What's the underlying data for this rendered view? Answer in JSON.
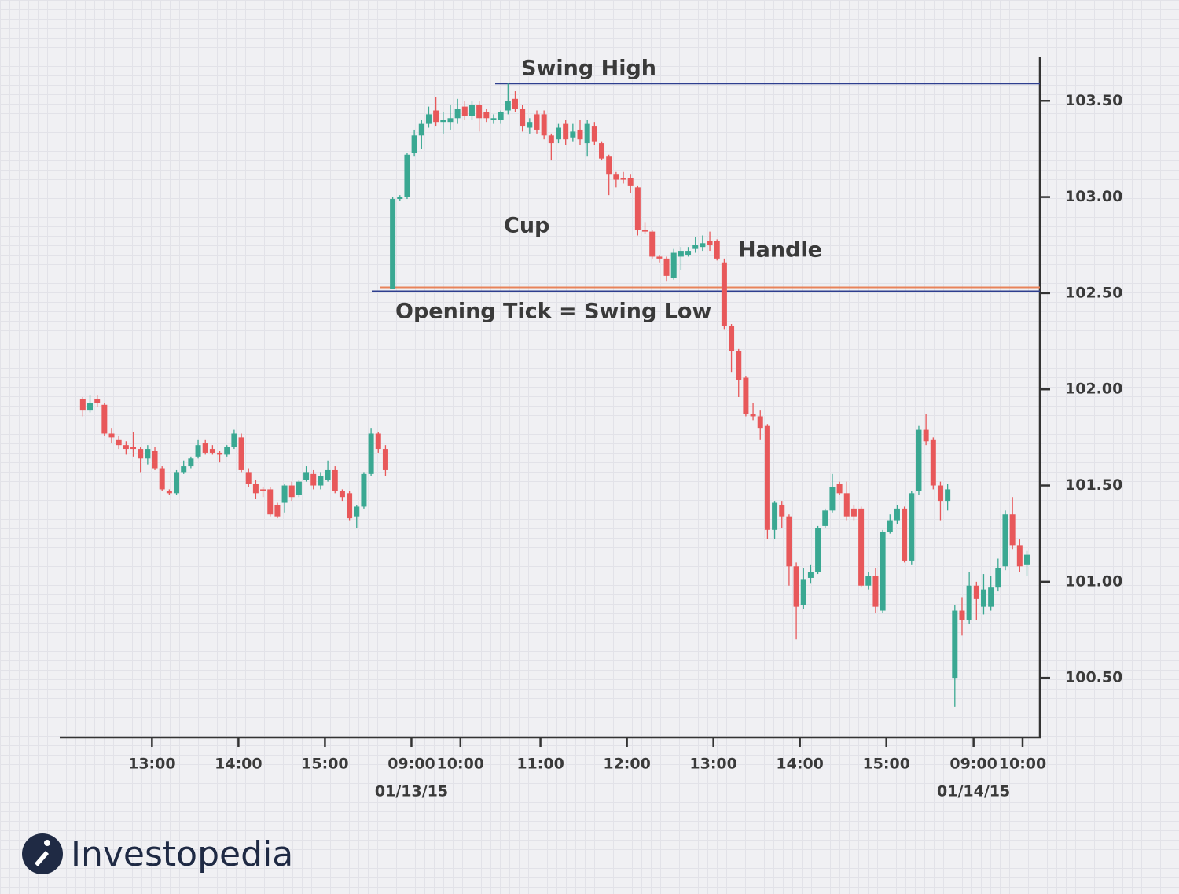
{
  "chart_data": {
    "type": "candlestick",
    "annotations": [
      "Swing High",
      "Cup",
      "Handle",
      "Opening Tick = Swing Low"
    ],
    "brand": "Investopedia",
    "up_color": "#3aa892",
    "down_color": "#e8585a",
    "lines": [
      {
        "value": 103.59,
        "color": "#2e3f8f"
      },
      {
        "value": 102.53,
        "color": "#e8835a"
      },
      {
        "value": 102.51,
        "color": "#2e3f8f"
      }
    ],
    "open": [
      101.95,
      101.89,
      101.95,
      101.92,
      101.77,
      101.74,
      101.71,
      101.7,
      101.69,
      101.64,
      101.68,
      101.59,
      101.47,
      101.46,
      101.57,
      101.6,
      101.65,
      101.72,
      101.69,
      101.67,
      101.66,
      101.7,
      101.75,
      101.57,
      101.51,
      101.48,
      101.48,
      101.4,
      101.41,
      101.5,
      101.45,
      101.53,
      101.56,
      101.5,
      101.53,
      101.58,
      101.47,
      101.46,
      101.34,
      101.39,
      101.56,
      101.77,
      101.69,
      102.52,
      102.99,
      103.0,
      103.23,
      103.32,
      103.38,
      103.45,
      103.39,
      103.39,
      103.41,
      103.47,
      103.42,
      103.48,
      103.44,
      103.4,
      103.4,
      103.45,
      103.51,
      103.46,
      103.36,
      103.43,
      103.43,
      103.32,
      103.3,
      103.38,
      103.31,
      103.35,
      103.28,
      103.37,
      103.28,
      103.21,
      103.12,
      103.1,
      103.1,
      103.05,
      102.83,
      102.82,
      102.69,
      102.68,
      102.58,
      102.69,
      102.7,
      102.73,
      102.74,
      102.77,
      102.77,
      102.66,
      102.33,
      102.2,
      102.06,
      101.87,
      101.86,
      101.81,
      101.27,
      101.4,
      101.34,
      101.08,
      100.88,
      101.02,
      101.05,
      101.29,
      101.37,
      101.51,
      101.46,
      101.38,
      101.38,
      100.98,
      101.03,
      100.85,
      101.26,
      101.32,
      101.38,
      101.11,
      101.47,
      101.79,
      101.74,
      101.5,
      101.42,
      100.5,
      100.85,
      100.8,
      100.98,
      100.87,
      100.87,
      100.97,
      101.08,
      101.35,
      101.19,
      101.09
    ],
    "high": [
      101.96,
      101.97,
      101.97,
      101.93,
      101.8,
      101.76,
      101.73,
      101.78,
      101.7,
      101.71,
      101.7,
      101.6,
      101.48,
      101.58,
      101.63,
      101.65,
      101.74,
      101.74,
      101.71,
      101.68,
      101.71,
      101.79,
      101.77,
      101.59,
      101.53,
      101.49,
      101.49,
      101.41,
      101.51,
      101.52,
      101.53,
      101.6,
      101.58,
      101.57,
      101.63,
      101.6,
      101.48,
      101.47,
      101.4,
      101.57,
      101.8,
      101.78,
      101.71,
      103.0,
      103.01,
      103.23,
      103.35,
      103.4,
      103.47,
      103.52,
      103.44,
      103.48,
      103.51,
      103.5,
      103.5,
      103.5,
      103.46,
      103.43,
      103.45,
      103.59,
      103.55,
      103.48,
      103.41,
      103.45,
      103.45,
      103.33,
      103.38,
      103.4,
      103.38,
      103.4,
      103.4,
      103.39,
      103.29,
      103.22,
      103.13,
      103.13,
      103.12,
      103.06,
      102.87,
      102.83,
      102.7,
      102.69,
      102.73,
      102.74,
      102.74,
      102.79,
      102.8,
      102.82,
      102.78,
      102.68,
      102.34,
      102.21,
      102.07,
      101.93,
      101.89,
      101.82,
      101.42,
      101.42,
      101.35,
      101.1,
      101.07,
      101.09,
      101.29,
      101.38,
      101.56,
      101.52,
      101.52,
      101.4,
      101.39,
      101.05,
      101.07,
      101.27,
      101.35,
      101.4,
      101.39,
      101.47,
      101.81,
      101.87,
      101.75,
      101.52,
      101.51,
      100.88,
      100.92,
      101.05,
      101.0,
      101.04,
      101.03,
      101.12,
      101.37,
      101.44,
      101.22,
      101.16
    ],
    "low": [
      101.86,
      101.88,
      101.91,
      101.76,
      101.72,
      101.69,
      101.66,
      101.65,
      101.57,
      101.61,
      101.58,
      101.47,
      101.45,
      101.45,
      101.56,
      101.59,
      101.64,
      101.66,
      101.66,
      101.62,
      101.65,
      101.69,
      101.57,
      101.49,
      101.43,
      101.44,
      101.34,
      101.33,
      101.36,
      101.42,
      101.44,
      101.52,
      101.48,
      101.48,
      101.52,
      101.46,
      101.42,
      101.32,
      101.28,
      101.38,
      101.55,
      101.67,
      101.55,
      102.52,
      102.98,
      102.99,
      103.21,
      103.25,
      103.36,
      103.37,
      103.33,
      103.35,
      103.38,
      103.4,
      103.4,
      103.34,
      103.39,
      103.38,
      103.38,
      103.43,
      103.44,
      103.34,
      103.33,
      103.33,
      103.3,
      103.19,
      103.28,
      103.27,
      103.29,
      103.27,
      103.21,
      103.27,
      103.19,
      103.01,
      103.05,
      103.07,
      103.02,
      102.8,
      102.81,
      102.68,
      102.66,
      102.56,
      102.57,
      102.62,
      102.69,
      102.71,
      102.72,
      102.72,
      102.67,
      102.31,
      102.09,
      101.96,
      101.86,
      101.84,
      101.74,
      101.22,
      101.22,
      101.28,
      100.98,
      100.7,
      100.86,
      100.99,
      101.04,
      101.28,
      101.36,
      101.45,
      101.32,
      101.32,
      100.97,
      100.96,
      100.84,
      100.84,
      101.25,
      101.3,
      101.1,
      101.09,
      101.45,
      101.71,
      101.48,
      101.32,
      101.37,
      100.35,
      100.72,
      100.78,
      100.8,
      100.83,
      100.85,
      100.95,
      101.06,
      101.17,
      101.05,
      101.03
    ],
    "close": [
      101.89,
      101.93,
      101.93,
      101.77,
      101.75,
      101.71,
      101.69,
      101.69,
      101.64,
      101.69,
      101.59,
      101.48,
      101.46,
      101.57,
      101.6,
      101.64,
      101.71,
      101.67,
      101.67,
      101.66,
      101.7,
      101.77,
      101.58,
      101.51,
      101.46,
      101.47,
      101.35,
      101.34,
      101.5,
      101.44,
      101.52,
      101.57,
      101.5,
      101.55,
      101.58,
      101.47,
      101.44,
      101.33,
      101.39,
      101.56,
      101.77,
      101.69,
      101.58,
      102.99,
      103.0,
      103.22,
      103.32,
      103.38,
      103.43,
      103.39,
      103.4,
      103.41,
      103.46,
      103.42,
      103.48,
      103.41,
      103.41,
      103.41,
      103.44,
      103.5,
      103.46,
      103.37,
      103.39,
      103.35,
      103.32,
      103.28,
      103.36,
      103.3,
      103.34,
      103.3,
      103.38,
      103.29,
      103.2,
      103.12,
      103.09,
      103.09,
      103.06,
      102.83,
      102.82,
      102.69,
      102.68,
      102.59,
      102.71,
      102.72,
      102.72,
      102.75,
      102.76,
      102.75,
      102.68,
      102.33,
      102.2,
      102.05,
      101.87,
      101.86,
      101.8,
      101.27,
      101.41,
      101.34,
      101.08,
      100.87,
      101.01,
      101.05,
      101.28,
      101.37,
      101.49,
      101.46,
      101.34,
      101.34,
      100.98,
      101.03,
      100.87,
      101.26,
      101.32,
      101.38,
      101.11,
      101.46,
      101.79,
      101.73,
      101.5,
      101.42,
      101.48,
      100.85,
      100.8,
      100.98,
      100.91,
      100.96,
      100.97,
      101.07,
      101.35,
      101.19,
      101.08,
      101.14
    ],
    "xlim": [
      -3.2,
      132.8
    ],
    "xticks": [
      {
        "value": 9.6,
        "label": "13:00"
      },
      {
        "value": 21.6,
        "label": "14:00"
      },
      {
        "value": 33.6,
        "label": "15:00"
      },
      {
        "value": 45.6,
        "label": "09:00"
      },
      {
        "value": 52.4,
        "label": "10:00"
      },
      {
        "value": 63.5,
        "label": "11:00"
      },
      {
        "value": 75.5,
        "label": "12:00"
      },
      {
        "value": 87.5,
        "label": "13:00"
      },
      {
        "value": 99.5,
        "label": "14:00"
      },
      {
        "value": 111.5,
        "label": "15:00"
      },
      {
        "value": 123.6,
        "label": "09:00"
      },
      {
        "value": 130.4,
        "label": "10:00"
      }
    ],
    "date_ticks": [
      {
        "value": 45.6,
        "label": "01/13/15"
      },
      {
        "value": 123.6,
        "label": "01/14/15"
      }
    ],
    "ylim": [
      100.19,
      103.73
    ],
    "yticks": [
      {
        "value": 100.5,
        "label": "100.50"
      },
      {
        "value": 101,
        "label": "101.00"
      },
      {
        "value": 101.5,
        "label": "101.50"
      },
      {
        "value": 102,
        "label": "102.00"
      },
      {
        "value": 102.5,
        "label": "102.50"
      },
      {
        "value": 103,
        "label": "103.00"
      },
      {
        "value": 103.5,
        "label": "103.50"
      }
    ]
  }
}
